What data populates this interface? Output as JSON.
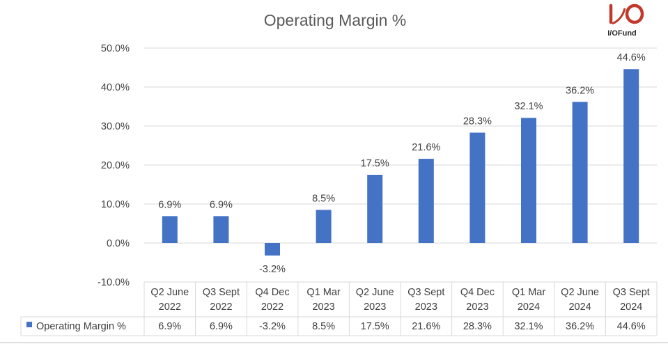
{
  "chart_data": {
    "type": "bar",
    "title": "Operating Margin %",
    "categories": [
      [
        "Q2 June",
        "2022"
      ],
      [
        "Q3 Sept",
        "2022"
      ],
      [
        "Q4 Dec",
        "2022"
      ],
      [
        "Q1 Mar",
        "2023"
      ],
      [
        "Q2 June",
        "2023"
      ],
      [
        "Q3 Sept",
        "2023"
      ],
      [
        "Q4 Dec",
        "2023"
      ],
      [
        "Q1 Mar",
        "2024"
      ],
      [
        "Q2 June",
        "2024"
      ],
      [
        "Q3 Sept",
        "2024"
      ]
    ],
    "series": [
      {
        "name": "Operating Margin %",
        "values": [
          6.9,
          6.9,
          -3.2,
          8.5,
          17.5,
          21.6,
          28.3,
          32.1,
          36.2,
          44.6
        ],
        "labels": [
          "6.9%",
          "6.9%",
          "-3.2%",
          "8.5%",
          "17.5%",
          "21.6%",
          "28.3%",
          "32.1%",
          "36.2%",
          "44.6%"
        ],
        "color": "#4472c4"
      }
    ],
    "yticks": [
      "50.0%",
      "40.0%",
      "30.0%",
      "20.0%",
      "10.0%",
      "0.0%",
      "-10.0%"
    ],
    "ylim": [
      -10,
      50
    ],
    "grid": true,
    "data_table": true
  },
  "logo": {
    "text": "I/OFund",
    "color": "#c0392b"
  }
}
